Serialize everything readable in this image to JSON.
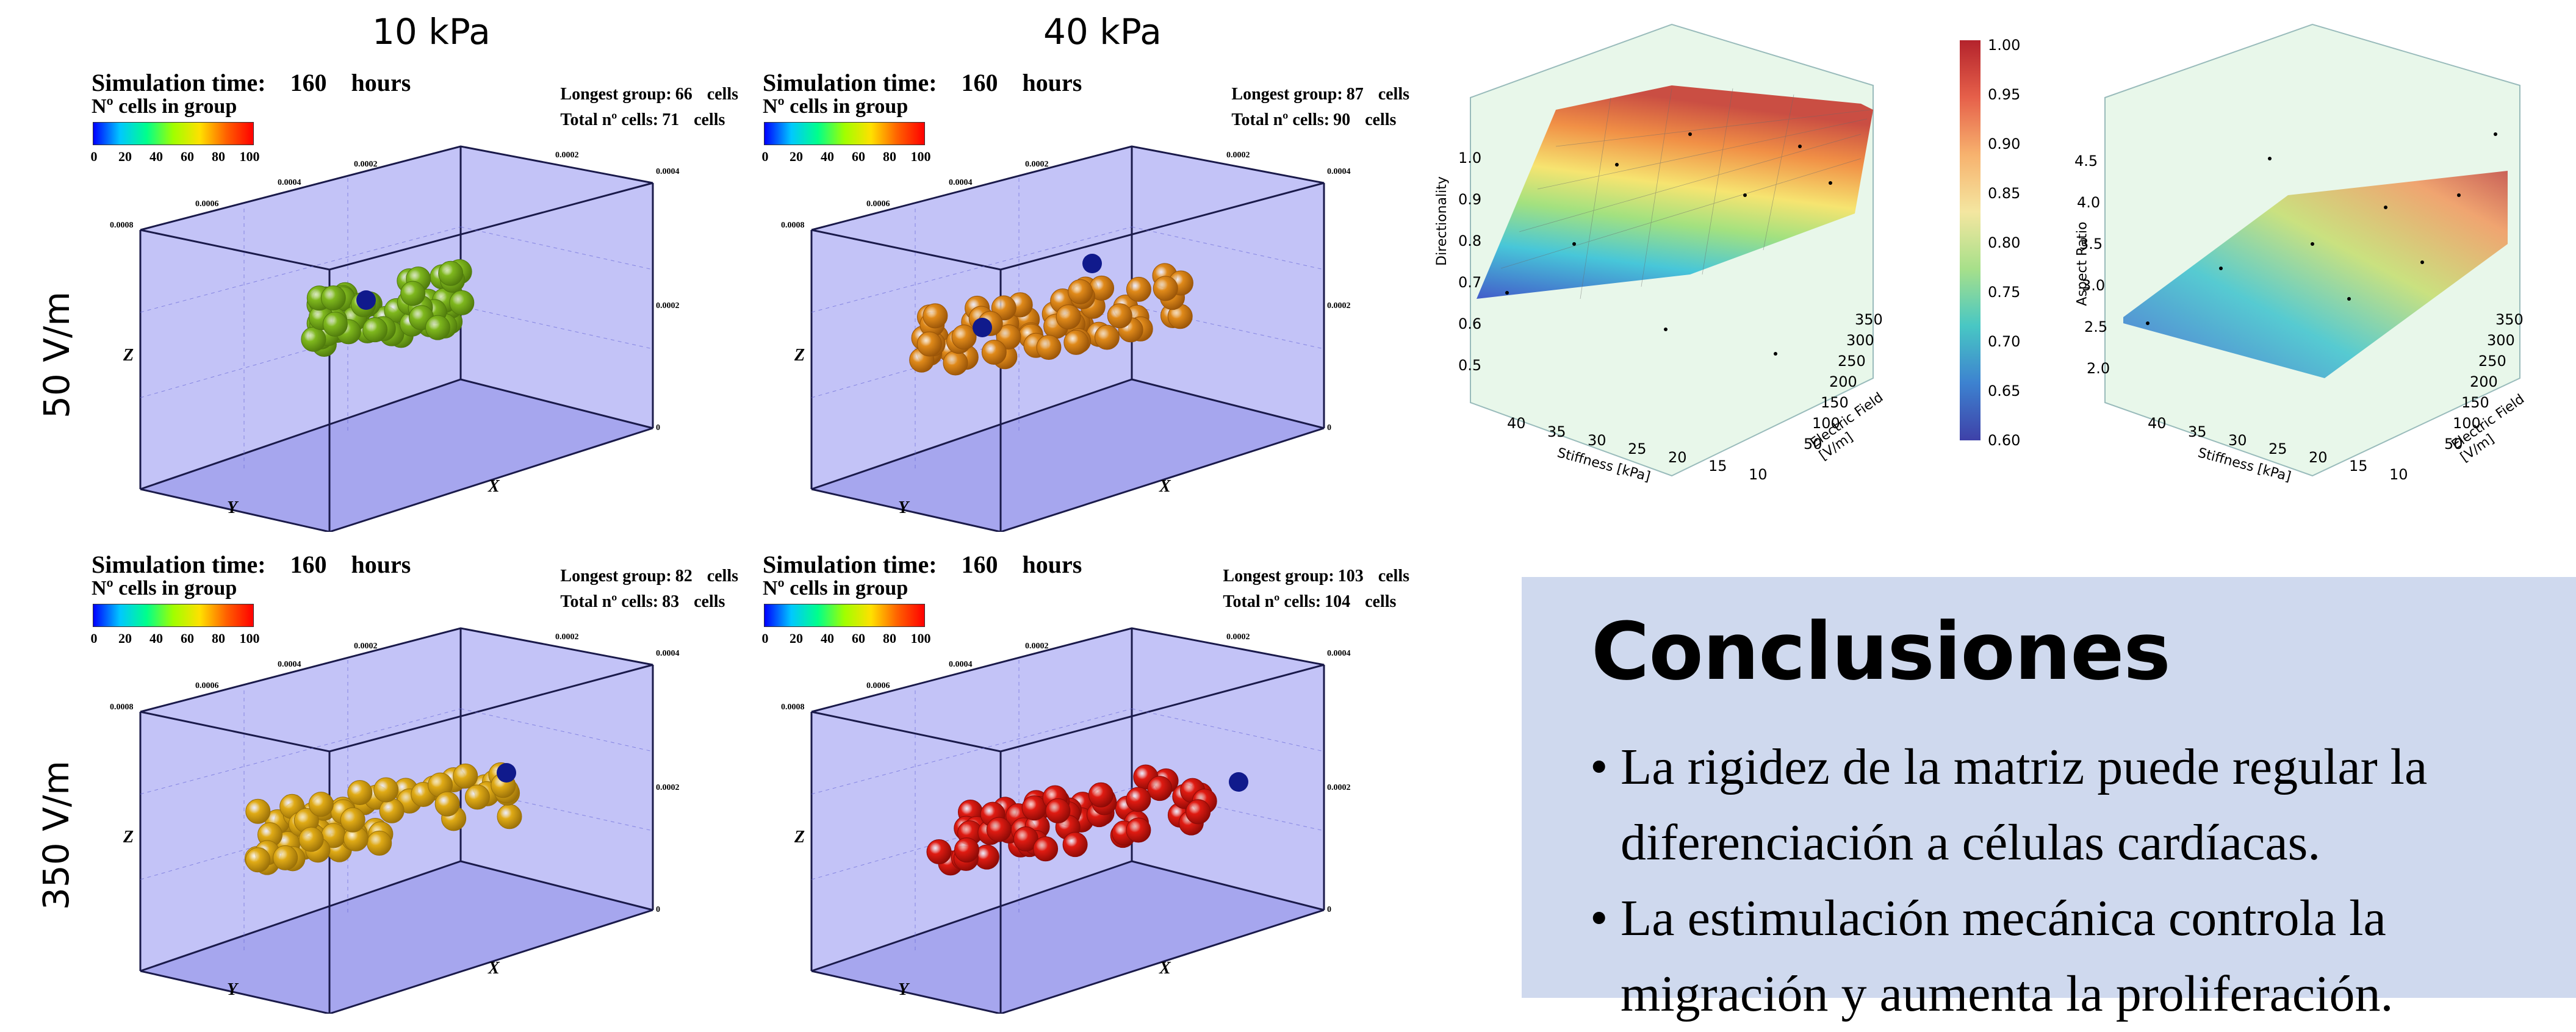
{
  "columns": [
    "10 kPa",
    "40 kPa"
  ],
  "rows": [
    "50 V/m",
    "350 V/m"
  ],
  "sim_label": "Simulation time:",
  "cells_group_label": "Nº cells in group",
  "colorbar_ticks": [
    "0",
    "20",
    "40",
    "60",
    "80",
    "100"
  ],
  "longest_label": "Longest group:",
  "total_label": "Total nº cells:",
  "cells_unit": "cells",
  "axis_labels": {
    "z": "Z",
    "y": "Y",
    "x": "X"
  },
  "box_ticks": {
    "a": "0.0008",
    "b": "0.0006",
    "c": "0.0004",
    "d": "0.0002",
    "e": "0"
  },
  "panels": [
    {
      "time": "160",
      "unit": "hours",
      "longest": "66",
      "total": "71",
      "color": "#7fb81e",
      "dark": "#4f7a0c"
    },
    {
      "time": "160",
      "unit": "hours",
      "longest": "87",
      "total": "90",
      "color": "#e08a1a",
      "dark": "#9a5508"
    },
    {
      "time": "160",
      "unit": "hours",
      "longest": "82",
      "total": "83",
      "color": "#e0ab16",
      "dark": "#9a7008"
    },
    {
      "time": "160",
      "unit": "hours",
      "longest": "103",
      "total": "104",
      "color": "#e01b12",
      "dark": "#8c0a06"
    }
  ],
  "plot_left": {
    "zlabel": "Directionality",
    "xlabel": "Stiffness [kPa]",
    "ylabel": "Electric Field [V/m]",
    "zticks": [
      "0.5",
      "0.6",
      "0.7",
      "0.8",
      "0.9",
      "1.0"
    ],
    "xticks": [
      "40",
      "35",
      "30",
      "25",
      "20",
      "15",
      "10"
    ],
    "yticks": [
      "50",
      "100",
      "150",
      "200",
      "250",
      "300",
      "350"
    ]
  },
  "colorbar": {
    "ticks": [
      "1.00",
      "0.95",
      "0.90",
      "0.85",
      "0.80",
      "0.75",
      "0.70",
      "0.65",
      "0.60"
    ]
  },
  "plot_right": {
    "zlabel": "Aspect Ratio",
    "xlabel": "Stiffness [kPa]",
    "ylabel": "Electric Field [V/m]",
    "zticks": [
      "2.0",
      "2.5",
      "3.0",
      "3.5",
      "4.0",
      "4.5"
    ],
    "xticks": [
      "40",
      "35",
      "30",
      "25",
      "20",
      "15",
      "10"
    ],
    "yticks": [
      "50",
      "100",
      "150",
      "200",
      "250",
      "300",
      "350"
    ]
  },
  "conclusions": {
    "title": "Conclusiones",
    "items": [
      "La rigidez de la matriz puede regular la diferenciación a células cardíacas.",
      "La estimulación mecánica controla la migración y aumenta la proliferación."
    ]
  },
  "colors": {
    "box_face": "#b8b8f6",
    "box_edge": "#1a1a4a",
    "panel_bg": "#cfd9ee",
    "marker_blue": "#101a8c"
  }
}
